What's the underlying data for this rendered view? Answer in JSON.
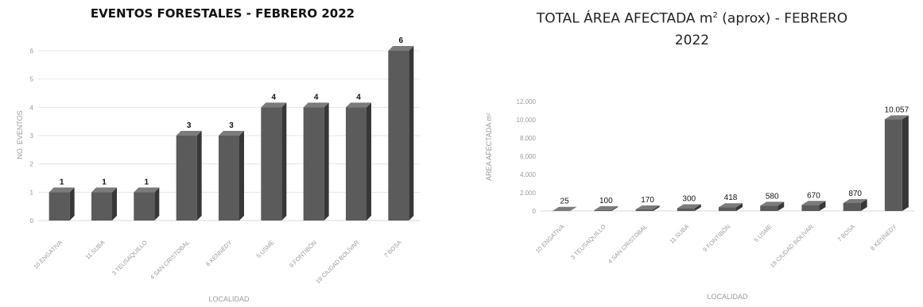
{
  "charts": [
    {
      "title": "EVENTOS FORESTALES - FEBRERO 2022",
      "chart_data": {
        "type": "bar",
        "title": "EVENTOS FORESTALES - FEBRERO 2022",
        "xlabel": "LOCALIDAD",
        "ylabel": "NO. EVENTOS",
        "categories": [
          "10 ENGATIVA",
          "11 SUBA",
          "3 TEUSAQUILLO",
          "4 SAN CRISTOBAL",
          "8 KENNEDY",
          "5 USME",
          "9 FONTIBÓN",
          "19 CIUDAD BOLÍVAR",
          "7 BOSA"
        ],
        "values": [
          1,
          1,
          1,
          3,
          3,
          4,
          4,
          4,
          6
        ],
        "data_labels": [
          "1",
          "1",
          "1",
          "3",
          "3",
          "4",
          "4",
          "4",
          "6"
        ],
        "yticks": [
          "0",
          "1",
          "2",
          "3",
          "4",
          "5",
          "6"
        ],
        "ylim": [
          0,
          6
        ],
        "grid": true,
        "bar_color": "#5b5b5b"
      }
    },
    {
      "title_main": "TOTAL ÁREA AFECTADA m",
      "title_sup": "2",
      "title_tail": " (aprox) - FEBRERO",
      "title_line2": "2022",
      "chart_data": {
        "type": "bar",
        "title": "TOTAL ÁREA AFECTADA m2 (aprox) - FEBRERO 2022",
        "xlabel": "LOCALIDAD",
        "ylabel": "AREA AFECTADA m²",
        "categories": [
          "10 ENGATIVA",
          "3 TEUSAQUILLO",
          "4 SAN CRISTOBAL",
          "11 SUBA",
          "9 FONTIBÓN",
          "5 USME",
          "19 CIUDAD BOLÍVAR",
          "7 BOSA",
          "8 KENNEDY"
        ],
        "values": [
          25,
          100,
          170,
          300,
          418,
          580,
          670,
          870,
          10057
        ],
        "data_labels": [
          "25",
          "100",
          "170",
          "300",
          "418",
          "580",
          "670",
          "870",
          "10.057"
        ],
        "yticks": [
          "0",
          "2.000",
          "4.000",
          "6.000",
          "8.000",
          "10.000",
          "12.000"
        ],
        "ylim": [
          0,
          12000
        ],
        "grid": false,
        "bar_color": "#5b5b5b"
      }
    }
  ]
}
